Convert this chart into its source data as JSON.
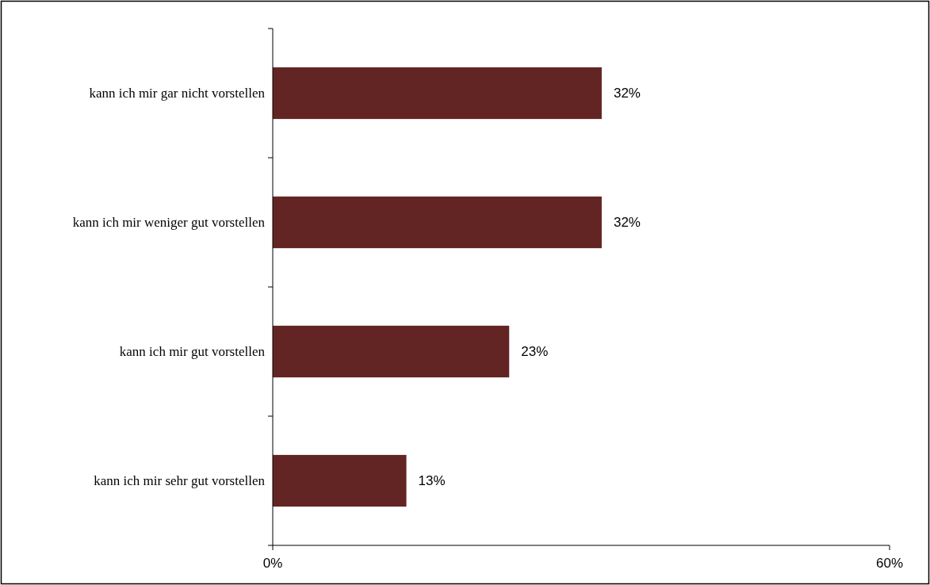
{
  "chart_data": {
    "type": "bar",
    "orientation": "horizontal",
    "categories": [
      "kann ich mir gar nicht vorstellen",
      "kann ich mir weniger gut vorstellen",
      "kann ich mir gut vorstellen",
      "kann ich mir sehr gut vorstellen"
    ],
    "values": [
      32,
      32,
      23,
      13
    ],
    "value_labels": [
      "32%",
      "32%",
      "23%",
      "13%"
    ],
    "color": "#632523",
    "xlim": [
      0,
      60
    ],
    "xticks": [
      {
        "value": 0,
        "label": "0%"
      },
      {
        "value": 60,
        "label": "60%"
      }
    ],
    "grid": false
  }
}
